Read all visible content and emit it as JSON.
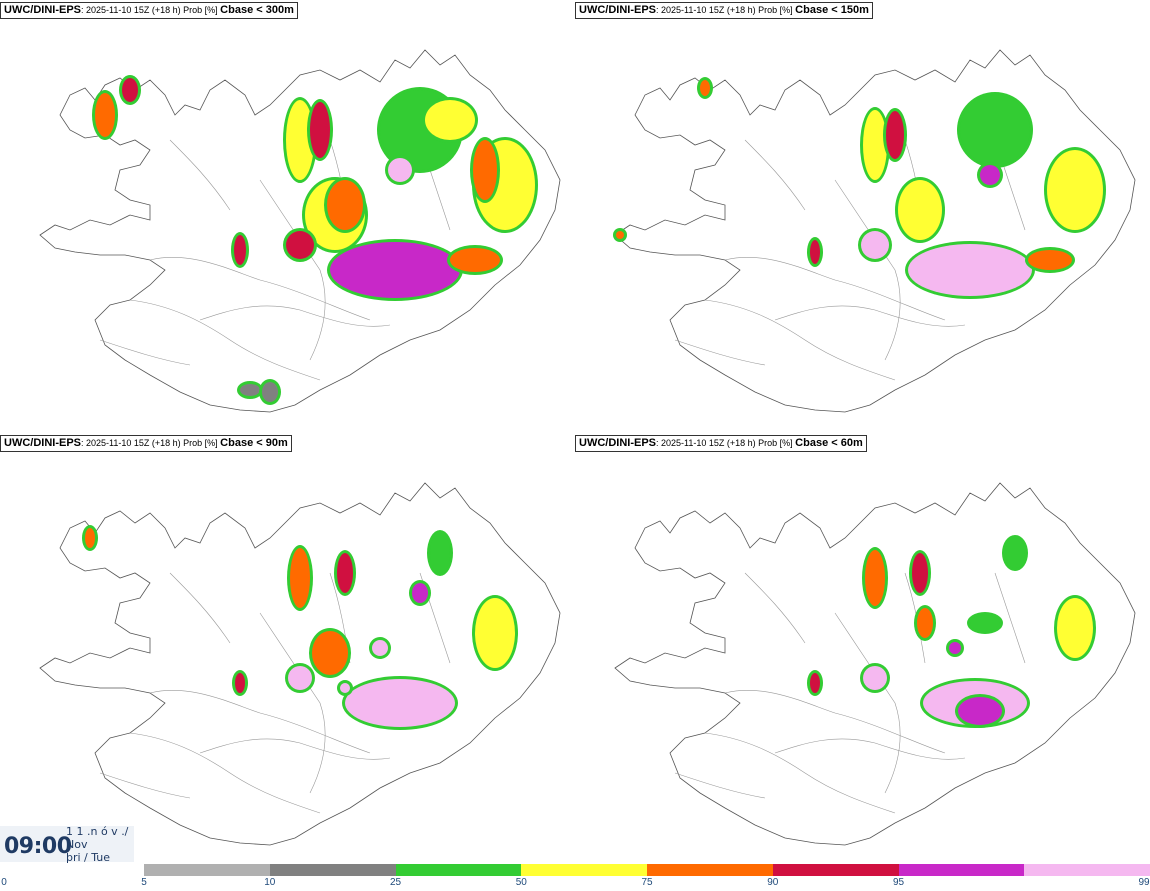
{
  "panels": [
    {
      "model": "UWC/DINI-EPS",
      "run": ": 2025-11-10 15Z (+18 h) Prob [%] ",
      "param": "Cbase < 300m",
      "intensity": 1.0
    },
    {
      "model": "UWC/DINI-EPS",
      "run": ": 2025-11-10 15Z (+18 h) Prob [%] ",
      "param": "Cbase < 150m",
      "intensity": 0.85
    },
    {
      "model": "UWC/DINI-EPS",
      "run": ": 2025-11-10 15Z (+18 h) Prob [%] ",
      "param": "Cbase < 90m",
      "intensity": 0.65
    },
    {
      "model": "UWC/DINI-EPS",
      "run": ": 2025-11-10 15Z (+18 h) Prob [%] ",
      "param": "Cbase < 60m",
      "intensity": 0.55
    }
  ],
  "valid_time": {
    "time": "09:00",
    "date_line1": "1 1 .n ó v ./",
    "date_line2": "Nov",
    "date_line3": "þri / Tue"
  },
  "legend": {
    "ticks": [
      "0",
      "5",
      "10",
      "25",
      "50",
      "75",
      "90",
      "95",
      "99"
    ],
    "colors": [
      "#b0b0b0",
      "#808080",
      "#33cc33",
      "#ffff33",
      "#ff6a00",
      "#d01040",
      "#c828c8",
      "#f5b8f0"
    ]
  }
}
